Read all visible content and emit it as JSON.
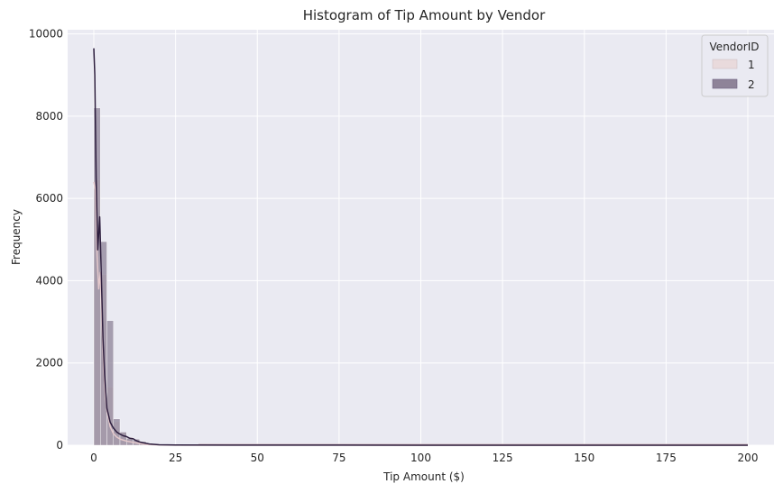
{
  "chart_data": {
    "type": "histogram",
    "title": "Histogram of Tip Amount by Vendor",
    "xlabel": "Tip Amount ($)",
    "ylabel": "Frequency",
    "xlim": [
      -8,
      208
    ],
    "ylim": [
      0,
      10100
    ],
    "xticks": [
      0,
      25,
      50,
      75,
      100,
      125,
      150,
      175,
      200
    ],
    "yticks": [
      0,
      2000,
      4000,
      6000,
      8000,
      10000
    ],
    "grid": true,
    "legend": {
      "title": "VendorID",
      "placement": "top-right"
    },
    "bin_width": 2,
    "bins_start": 0,
    "series": [
      {
        "name": "1",
        "color": "#e8d6d8",
        "bar_fill": "#e9dadc",
        "kde_color": "#e5c9cc",
        "counts": [
          6450,
          4150,
          1420,
          570,
          310,
          190,
          110,
          65,
          35,
          20,
          12,
          8,
          5,
          4,
          3,
          2
        ]
      },
      {
        "name": "2",
        "color": "#56486a",
        "bar_fill": "#8e8398",
        "kde_color": "#2d1e3e",
        "counts": [
          8200,
          4950,
          3030,
          640,
          320,
          170,
          150,
          90,
          50,
          25,
          15,
          10,
          6,
          4,
          3,
          2
        ]
      }
    ],
    "kde_series": [
      {
        "name": "1",
        "x": [
          0,
          0.5,
          1,
          1.5,
          2,
          2.5,
          3,
          3.5,
          4,
          5,
          6,
          7,
          8,
          10,
          12,
          14,
          16,
          20,
          25,
          50,
          100,
          150,
          200
        ],
        "y": [
          6400,
          6200,
          4600,
          3800,
          4200,
          3000,
          1900,
          1250,
          850,
          450,
          280,
          200,
          150,
          100,
          70,
          40,
          20,
          8,
          4,
          2,
          1,
          1,
          1
        ]
      },
      {
        "name": "2",
        "x": [
          0,
          0.3,
          0.7,
          1.2,
          1.8,
          2.3,
          2.8,
          3.3,
          4,
          5,
          6,
          7,
          8,
          9,
          10,
          11,
          12,
          13,
          14,
          15,
          17,
          20,
          25,
          50,
          100,
          150,
          200
        ],
        "y": [
          9650,
          9000,
          6500,
          4750,
          5550,
          4100,
          2600,
          1700,
          900,
          560,
          420,
          320,
          270,
          230,
          210,
          170,
          160,
          110,
          80,
          60,
          30,
          12,
          5,
          2,
          1,
          1,
          1
        ]
      }
    ]
  }
}
